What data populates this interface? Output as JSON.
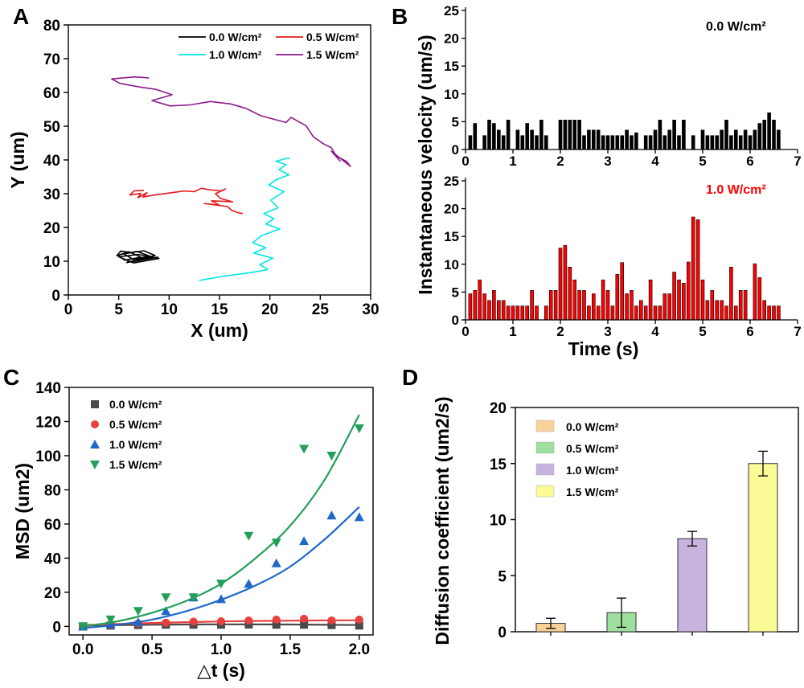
{
  "panels": {
    "a": "A",
    "b": "B",
    "c": "C",
    "d": "D"
  },
  "chart_data": [
    {
      "id": "A",
      "type": "line",
      "xlabel": "X (um)",
      "ylabel": "Y (um)",
      "xlim": [
        0,
        30
      ],
      "ylim": [
        0,
        80
      ],
      "xticks": [
        0,
        5,
        10,
        15,
        20,
        25,
        30
      ],
      "yticks": [
        0,
        10,
        20,
        30,
        40,
        50,
        60,
        70,
        80
      ],
      "legend": [
        "0.0 W/cm²",
        "0.5 W/cm²",
        "1.0 W/cm²",
        "1.5 W/cm²"
      ],
      "series": [
        {
          "name": "0.0 W/cm²",
          "color": "#000000",
          "x": [
            6.5,
            5.2,
            4.8,
            6.0,
            7.2,
            5.6,
            4.9,
            6.8,
            8.1,
            6.4,
            5.5,
            7.5,
            8.6,
            6.9,
            5.8,
            7.8,
            8.9,
            6.2,
            5.0,
            7.0,
            9.0,
            6.5,
            5.8
          ],
          "y": [
            12.5,
            13.0,
            11.6,
            12.8,
            11.2,
            10.3,
            11.8,
            12.9,
            11.5,
            10.6,
            12.2,
            13.1,
            11.7,
            10.5,
            9.6,
            10.9,
            11.2,
            9.8,
            11.3,
            12.0,
            10.8,
            9.5,
            10.2
          ]
        },
        {
          "name": "0.5 W/cm²",
          "color": "#e41a1c",
          "x": [
            7.5,
            6.5,
            6.1,
            7.2,
            6.9,
            7.8,
            7.4,
            8.5,
            10.0,
            11.5,
            12.5,
            13.2,
            14.0,
            15.1,
            15.6,
            14.6,
            15.1,
            16.3,
            14.2,
            15.0,
            13.5,
            15.8,
            16.2,
            16.8,
            17.3
          ],
          "y": [
            31.0,
            30.8,
            29.6,
            30.1,
            28.8,
            30.3,
            29.0,
            29.6,
            30.2,
            30.8,
            30.6,
            31.6,
            31.2,
            30.8,
            31.4,
            30.0,
            28.6,
            27.6,
            27.9,
            26.6,
            27.1,
            26.2,
            25.1,
            24.4,
            24.1
          ]
        },
        {
          "name": "1.0 W/cm²",
          "color": "#00e5e5",
          "x": [
            13.0,
            15.5,
            18.0,
            19.8,
            19.0,
            20.3,
            18.4,
            19.6,
            18.3,
            19.2,
            21.0,
            19.6,
            20.4,
            19.4,
            20.8,
            20.1,
            21.4,
            19.9,
            20.6,
            21.9,
            20.9,
            21.6,
            20.6,
            21.8,
            22.0
          ],
          "y": [
            4.3,
            5.6,
            6.6,
            7.5,
            9.0,
            10.9,
            12.4,
            14.0,
            15.5,
            17.6,
            19.6,
            21.0,
            22.6,
            24.1,
            25.8,
            28.1,
            30.6,
            32.6,
            34.1,
            35.6,
            37.1,
            38.6,
            39.6,
            40.6,
            40.3
          ]
        },
        {
          "name": "1.5 W/cm²",
          "color": "#8b1a8b",
          "x": [
            8.0,
            6.6,
            4.3,
            5.1,
            7.1,
            8.7,
            10.3,
            8.3,
            10.1,
            12.1,
            14.1,
            16.1,
            17.6,
            19.1,
            21.6,
            22.1,
            23.6,
            24.3,
            25.3,
            26.1,
            26.6,
            27.6,
            28.0,
            26.1,
            27.0
          ],
          "y": [
            64.3,
            64.6,
            64.0,
            62.7,
            61.6,
            60.9,
            59.3,
            57.6,
            56.0,
            56.3,
            57.3,
            56.6,
            55.3,
            53.1,
            51.1,
            52.6,
            50.1,
            46.9,
            44.8,
            43.6,
            41.1,
            39.6,
            38.1,
            42.6,
            39.6
          ]
        }
      ]
    },
    {
      "id": "B-top",
      "type": "bar",
      "annotation": "0.0 W/cm²",
      "xlim": [
        0,
        7
      ],
      "ylim": [
        0,
        25
      ],
      "xticks": [
        0,
        1,
        2,
        3,
        4,
        5,
        6,
        7
      ],
      "yticks": [
        0,
        5,
        10,
        15,
        20,
        25
      ],
      "ylabel": "Instantaneous velocity (um/s)",
      "bar_width": 0.068,
      "x": [
        0.1,
        0.2,
        0.4,
        0.5,
        0.6,
        0.7,
        0.8,
        0.9,
        1.1,
        1.2,
        1.3,
        1.4,
        1.5,
        1.6,
        1.7,
        2.0,
        2.1,
        2.2,
        2.3,
        2.4,
        2.5,
        2.6,
        2.7,
        2.8,
        2.9,
        3.0,
        3.1,
        3.2,
        3.3,
        3.4,
        3.5,
        3.6,
        3.8,
        3.9,
        4.0,
        4.1,
        4.2,
        4.3,
        4.4,
        4.5,
        4.6,
        4.8,
        5.0,
        5.1,
        5.2,
        5.3,
        5.4,
        5.5,
        5.6,
        5.7,
        5.8,
        5.9,
        6.0,
        6.1,
        6.2,
        6.3,
        6.4,
        6.5,
        6.6
      ],
      "values": [
        2.5,
        4.7,
        2.5,
        5.3,
        4.7,
        3.5,
        2.5,
        5.3,
        3.5,
        2.5,
        4.7,
        3.5,
        2.5,
        5.3,
        2.5,
        5.3,
        5.3,
        5.3,
        5.3,
        5.3,
        2.5,
        3.5,
        3.5,
        3.5,
        2.5,
        2.5,
        2.5,
        2.5,
        2.5,
        3.5,
        2.5,
        3.0,
        2.5,
        2.5,
        3.5,
        5.3,
        2.5,
        3.5,
        5.3,
        2.5,
        5.3,
        2.5,
        3.5,
        2.5,
        2.5,
        2.5,
        3.5,
        5.3,
        2.5,
        3.5,
        2.5,
        3.5,
        2.5,
        3.5,
        4.7,
        5.3,
        6.6,
        5.3,
        3.5
      ]
    },
    {
      "id": "B-bottom",
      "type": "bar",
      "annotation": "1.0 W/cm²",
      "xlim": [
        0,
        7
      ],
      "ylim": [
        0,
        25
      ],
      "xticks": [
        0,
        1,
        2,
        3,
        4,
        5,
        6,
        7
      ],
      "yticks": [
        0,
        5,
        10,
        15,
        20,
        25
      ],
      "xlabel": "Time (s)",
      "bar_width": 0.068,
      "x": [
        0.1,
        0.2,
        0.3,
        0.4,
        0.5,
        0.6,
        0.7,
        0.8,
        0.9,
        1.0,
        1.1,
        1.2,
        1.3,
        1.4,
        1.5,
        1.7,
        1.8,
        1.9,
        2.0,
        2.1,
        2.2,
        2.3,
        2.4,
        2.5,
        2.6,
        2.7,
        2.8,
        2.9,
        3.0,
        3.1,
        3.2,
        3.3,
        3.4,
        3.5,
        3.6,
        3.7,
        3.8,
        3.9,
        4.0,
        4.1,
        4.2,
        4.3,
        4.4,
        4.5,
        4.6,
        4.7,
        4.8,
        4.9,
        5.0,
        5.1,
        5.2,
        5.3,
        5.4,
        5.5,
        5.6,
        5.7,
        5.8,
        5.9,
        6.1,
        6.2,
        6.3,
        6.4,
        6.5,
        6.6
      ],
      "values": [
        4.7,
        5.3,
        7.2,
        4.7,
        3.5,
        5.3,
        3.5,
        3.5,
        2.5,
        2.5,
        2.5,
        2.5,
        2.5,
        5.3,
        2.5,
        2.5,
        5.3,
        5.3,
        12.9,
        13.4,
        9.5,
        7.2,
        5.3,
        5.3,
        2.5,
        4.7,
        2.5,
        7.2,
        5.3,
        2.5,
        8.2,
        10.3,
        4.7,
        5.3,
        2.5,
        3.5,
        2.5,
        7.2,
        2.5,
        2.5,
        4.7,
        4.7,
        8.6,
        7.2,
        6.6,
        10.4,
        18.5,
        18.0,
        7.2,
        3.5,
        5.3,
        3.5,
        3.5,
        2.5,
        9.5,
        2.5,
        5.3,
        5.3,
        10.1,
        7.6,
        3.5,
        2.5,
        2.5,
        2.5
      ]
    },
    {
      "id": "C",
      "type": "scatter",
      "xlabel": "△t (s)",
      "ylabel": "MSD (um2)",
      "xlim": [
        -0.1,
        2.1
      ],
      "ylim": [
        -5,
        140
      ],
      "xticks": [
        0.0,
        0.5,
        1.0,
        1.5,
        2.0
      ],
      "yticks": [
        0,
        20,
        40,
        60,
        80,
        100,
        120,
        140
      ],
      "series": [
        {
          "name": "0.0 W/cm²",
          "color": "#4a4a4a",
          "marker": "square",
          "x": [
            0.0,
            0.2,
            0.4,
            0.6,
            0.8,
            1.0,
            1.2,
            1.4,
            1.6,
            1.8,
            2.0
          ],
          "y": [
            0.0,
            0.5,
            0.8,
            1.0,
            1.0,
            1.0,
            1.1,
            1.0,
            1.0,
            0.8,
            0.5
          ],
          "fit": [
            [
              0.0,
              0.5
            ],
            [
              0.5,
              1.0
            ],
            [
              1.0,
              1.2
            ],
            [
              1.5,
              1.1
            ],
            [
              2.0,
              0.8
            ]
          ]
        },
        {
          "name": "0.5 W/cm²",
          "color": "#e84040",
          "marker": "circle",
          "x": [
            0.0,
            0.2,
            0.4,
            0.6,
            0.8,
            1.0,
            1.2,
            1.4,
            1.6,
            1.8,
            2.0
          ],
          "y": [
            0.0,
            1.2,
            1.8,
            2.2,
            2.8,
            3.0,
            3.5,
            4.0,
            4.5,
            3.5,
            4.0
          ],
          "fit": [
            [
              0.0,
              0.8
            ],
            [
              0.5,
              2.0
            ],
            [
              1.0,
              2.9
            ],
            [
              1.5,
              3.4
            ],
            [
              2.0,
              3.6
            ]
          ]
        },
        {
          "name": "1.0 W/cm²",
          "color": "#1f68c8",
          "marker": "triangle-up",
          "x": [
            0.0,
            0.2,
            0.4,
            0.6,
            0.8,
            1.0,
            1.2,
            1.4,
            1.6,
            1.8,
            2.0
          ],
          "y": [
            0.0,
            1.5,
            2.5,
            9.0,
            17.0,
            16.0,
            25.0,
            37.0,
            50.0,
            65.0,
            64.0
          ],
          "fit": [
            [
              0.0,
              -1.0
            ],
            [
              0.25,
              1.0
            ],
            [
              0.5,
              4.0
            ],
            [
              0.75,
              9.0
            ],
            [
              1.0,
              15.6
            ],
            [
              1.25,
              24.0
            ],
            [
              1.5,
              35.0
            ],
            [
              1.75,
              51.0
            ],
            [
              2.0,
              70.0
            ]
          ]
        },
        {
          "name": "1.5 W/cm²",
          "color": "#22a05a",
          "marker": "triangle-down",
          "x": [
            0.0,
            0.2,
            0.4,
            0.6,
            0.8,
            1.0,
            1.2,
            1.4,
            1.6,
            1.8,
            2.0
          ],
          "y": [
            0.0,
            4.0,
            9.0,
            17.0,
            17.0,
            25.0,
            53.0,
            49.0,
            104.0,
            100.0,
            116.0
          ],
          "fit": [
            [
              0.0,
              0.0
            ],
            [
              0.25,
              3.0
            ],
            [
              0.5,
              8.0
            ],
            [
              0.75,
              15.0
            ],
            [
              1.0,
              25.0
            ],
            [
              1.25,
              40.0
            ],
            [
              1.5,
              59.0
            ],
            [
              1.75,
              86.0
            ],
            [
              2.0,
              124.0
            ]
          ]
        }
      ]
    },
    {
      "id": "D",
      "type": "bar",
      "ylabel": "Diffusion coefficient (um2/s)",
      "ylim": [
        0,
        20
      ],
      "yticks": [
        0,
        5,
        10,
        15,
        20
      ],
      "categories": [
        "0.0 W/cm²",
        "0.5 W/cm²",
        "1.0 W/cm²",
        "1.5 W/cm²"
      ],
      "values": [
        0.75,
        1.7,
        8.3,
        15.0
      ],
      "errors": [
        0.45,
        1.3,
        0.65,
        1.1
      ],
      "colors": [
        "#fbd19a",
        "#9fe09f",
        "#c8b3df",
        "#fafa96"
      ]
    }
  ]
}
